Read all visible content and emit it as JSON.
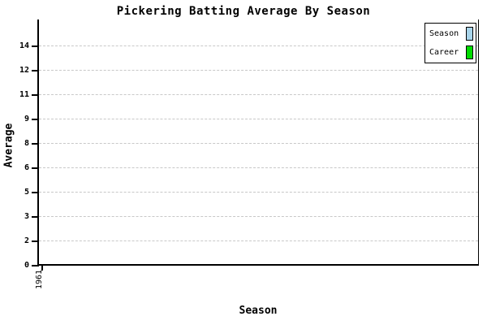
{
  "page": {
    "background": "#FFFFFF"
  },
  "chart_data": {
    "type": "bar",
    "title": "Pickering Batting Average By Season",
    "xlabel": "Season",
    "ylabel": "Average",
    "categories": [
      "1961"
    ],
    "series": [
      {
        "name": "Season",
        "color": "#A8D4EA",
        "values": [
          null
        ]
      },
      {
        "name": "Career",
        "color": "#00DC00",
        "values": [
          null
        ]
      }
    ],
    "y_tick_labels_bottom_to_top": [
      "0",
      "2",
      "3",
      "5",
      "6",
      "8",
      "9",
      "11",
      "12",
      "14"
    ],
    "no_data_bars_visible": true,
    "grid": "horizontal-dashed",
    "gridline_color": "#C8C8C8",
    "axis_color": "#000000",
    "legend_position": "top-right",
    "legend_border_color": "#000000"
  }
}
